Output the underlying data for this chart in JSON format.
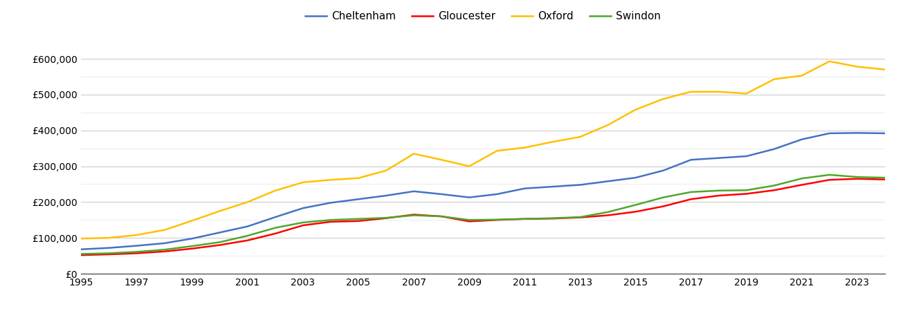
{
  "years": [
    1995,
    1996,
    1997,
    1998,
    1999,
    2000,
    2001,
    2002,
    2003,
    2004,
    2005,
    2006,
    2007,
    2008,
    2009,
    2010,
    2011,
    2012,
    2013,
    2014,
    2015,
    2016,
    2017,
    2018,
    2019,
    2020,
    2021,
    2022,
    2023,
    2024
  ],
  "cheltenham": [
    68000,
    72000,
    78000,
    85000,
    98000,
    115000,
    132000,
    158000,
    183000,
    198000,
    208000,
    218000,
    230000,
    222000,
    213000,
    222000,
    238000,
    243000,
    248000,
    258000,
    268000,
    288000,
    318000,
    323000,
    328000,
    348000,
    375000,
    392000,
    393000,
    392000
  ],
  "gloucester": [
    52000,
    54000,
    57000,
    62000,
    70000,
    80000,
    93000,
    112000,
    135000,
    145000,
    147000,
    155000,
    165000,
    160000,
    146000,
    150000,
    153000,
    154000,
    157000,
    163000,
    173000,
    188000,
    208000,
    218000,
    223000,
    233000,
    248000,
    262000,
    265000,
    263000
  ],
  "oxford": [
    98000,
    100000,
    108000,
    122000,
    148000,
    175000,
    200000,
    232000,
    255000,
    262000,
    267000,
    288000,
    335000,
    318000,
    300000,
    343000,
    352000,
    368000,
    382000,
    415000,
    458000,
    488000,
    508000,
    508000,
    503000,
    543000,
    553000,
    593000,
    578000,
    570000
  ],
  "swindon": [
    55000,
    57000,
    61000,
    67000,
    77000,
    88000,
    106000,
    128000,
    143000,
    150000,
    153000,
    156000,
    163000,
    160000,
    150000,
    151000,
    153000,
    155000,
    158000,
    172000,
    192000,
    213000,
    228000,
    232000,
    233000,
    246000,
    266000,
    276000,
    270000,
    268000
  ],
  "colors": {
    "cheltenham": "#4472C4",
    "gloucester": "#FF0000",
    "oxford": "#FFC000",
    "swindon": "#4EA72A"
  },
  "ylim": [
    0,
    660000
  ],
  "yticks": [
    0,
    100000,
    200000,
    300000,
    400000,
    500000,
    600000
  ],
  "minor_yticks": [
    50000,
    150000,
    250000,
    350000,
    450000,
    550000
  ],
  "xlim": [
    1995,
    2024
  ],
  "background_color": "#ffffff",
  "major_grid_color": "#cccccc",
  "minor_grid_color": "#e8e8e8",
  "legend_labels": [
    "Cheltenham",
    "Gloucester",
    "Oxford",
    "Swindon"
  ]
}
